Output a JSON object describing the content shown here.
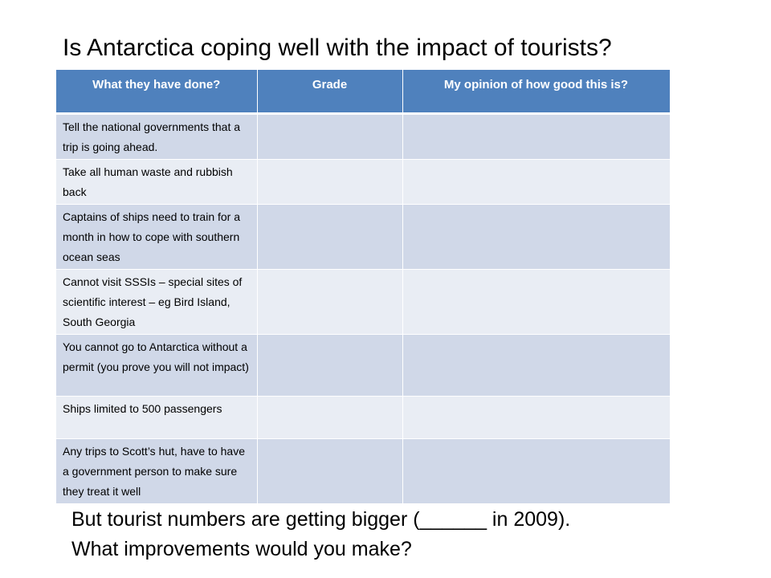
{
  "slide": {
    "title": "Is Antarctica coping well with the impact of tourists?",
    "table": {
      "headers": [
        "What they have done?",
        "Grade",
        "My opinion of how good this is?"
      ],
      "rows": [
        {
          "action": "Tell the national governments that a trip is going ahead.",
          "grade": "",
          "opinion": ""
        },
        {
          "action": "Take all human waste and rubbish back",
          "grade": "",
          "opinion": ""
        },
        {
          "action": "Captains of ships need to train for a month in how to cope with southern ocean seas",
          "grade": "",
          "opinion": ""
        },
        {
          "action": "Cannot visit SSSIs – special sites of scientific interest – eg Bird Island, South Georgia",
          "grade": "",
          "opinion": ""
        },
        {
          "action": "You cannot go to Antarctica without a permit (you prove you will not impact)",
          "grade": "",
          "opinion": ""
        },
        {
          "action": "Ships limited to 500 passengers",
          "grade": "",
          "opinion": ""
        },
        {
          "action": "Any trips to Scott’s hut, have to have a government person to make sure they treat it well",
          "grade": "",
          "opinion": ""
        }
      ]
    },
    "footer": {
      "line1": "But tourist numbers are getting bigger (______ in 2009).",
      "line2": "What improvements would you make?"
    }
  }
}
